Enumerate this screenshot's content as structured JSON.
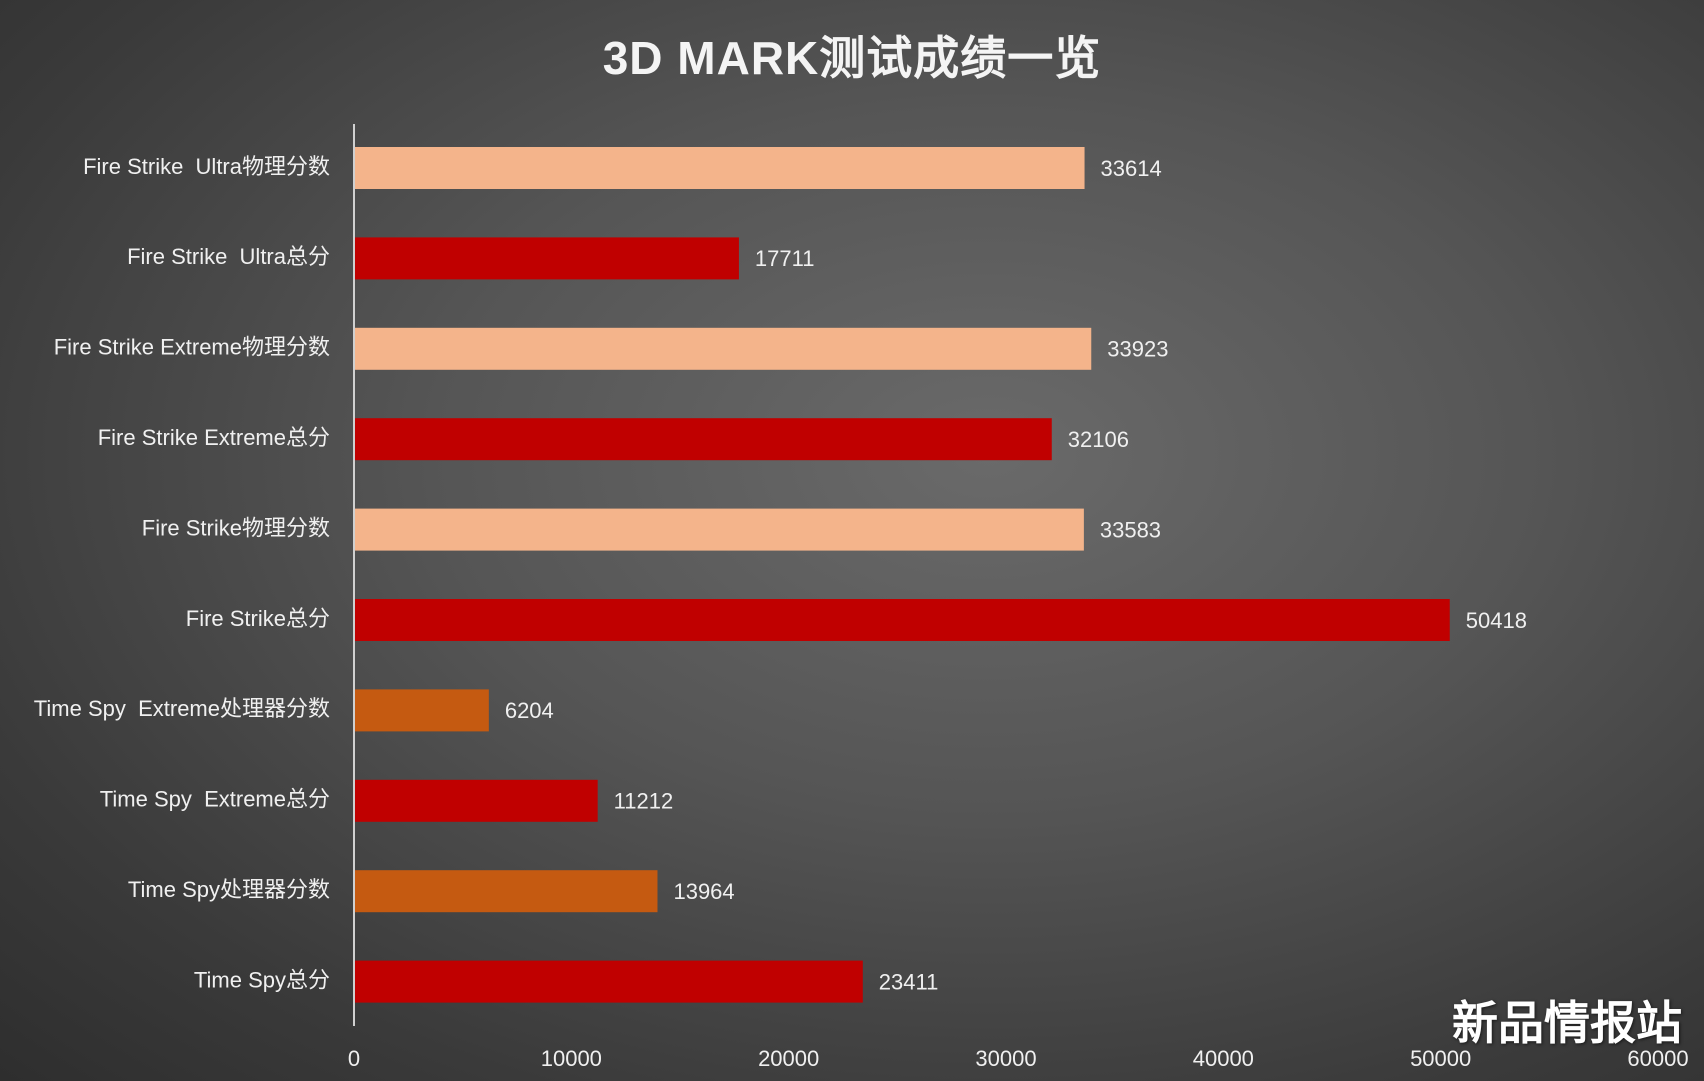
{
  "chart_data": {
    "type": "bar",
    "orientation": "horizontal",
    "title": "3D MARK测试成绩一览",
    "categories": [
      "Fire Strike  Ultra物理分数",
      "Fire Strike  Ultra总分",
      "Fire Strike Extreme物理分数",
      "Fire Strike Extreme总分",
      "Fire Strike物理分数",
      "Fire Strike总分",
      "Time Spy  Extreme处理器分数",
      "Time Spy  Extreme总分",
      "Time Spy处理器分数",
      "Time Spy总分"
    ],
    "values": [
      33614,
      17711,
      33923,
      32106,
      33583,
      50418,
      6204,
      11212,
      13964,
      23411
    ],
    "bar_colors": [
      "#f4b48b",
      "#c00000",
      "#f4b48b",
      "#c00000",
      "#f4b48b",
      "#c00000",
      "#c55a11",
      "#c00000",
      "#c55a11",
      "#c00000"
    ],
    "xlim": [
      0,
      60000
    ],
    "xticks": [
      0,
      10000,
      20000,
      30000,
      40000,
      50000,
      60000
    ],
    "xlabel": "",
    "ylabel": "",
    "grid": false,
    "data_labels": true
  },
  "watermark": "新品情报站"
}
